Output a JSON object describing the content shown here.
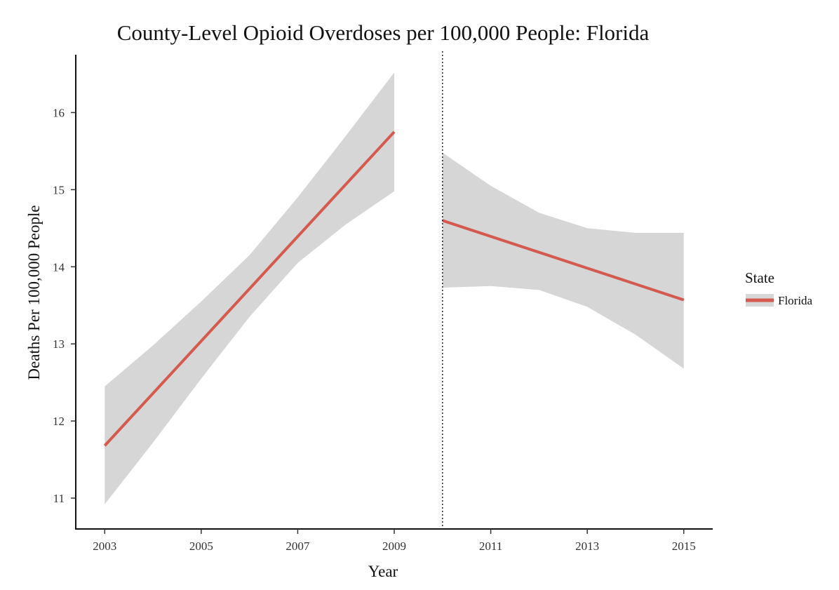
{
  "chart_data": {
    "type": "line",
    "title": "County-Level Opioid Overdoses per 100,000 People: Florida",
    "xlabel": "Year",
    "ylabel": "Deaths Per 100,000 People",
    "xlim": [
      2002.4,
      2015.6
    ],
    "ylim": [
      10.6,
      16.75
    ],
    "x_ticks": [
      2003,
      2005,
      2007,
      2009,
      2011,
      2013,
      2015
    ],
    "y_ticks": [
      11,
      12,
      13,
      14,
      15,
      16
    ],
    "grid": false,
    "legend": {
      "title": "State",
      "placement": "right",
      "entries": [
        "Florida"
      ]
    },
    "reference_line": {
      "x": 2010,
      "style": "dotted"
    },
    "series": [
      {
        "name": "Florida",
        "color": "#d45a50",
        "band_color": "#d6d6d6",
        "segments": [
          {
            "x": [
              2003,
              2009
            ],
            "y": [
              11.68,
              15.75
            ],
            "band": [
              {
                "x": 2003,
                "lower": 10.92,
                "upper": 12.45
              },
              {
                "x": 2004,
                "lower": 11.72,
                "upper": 12.98
              },
              {
                "x": 2005,
                "lower": 12.55,
                "upper": 13.55
              },
              {
                "x": 2006,
                "lower": 13.35,
                "upper": 14.15
              },
              {
                "x": 2007,
                "lower": 14.05,
                "upper": 14.9
              },
              {
                "x": 2008,
                "lower": 14.55,
                "upper": 15.7
              },
              {
                "x": 2009,
                "lower": 14.98,
                "upper": 16.52
              }
            ]
          },
          {
            "x": [
              2010,
              2015
            ],
            "y": [
              14.6,
              13.57
            ],
            "band": [
              {
                "x": 2010,
                "lower": 13.73,
                "upper": 15.48
              },
              {
                "x": 2011,
                "lower": 13.75,
                "upper": 15.05
              },
              {
                "x": 2012,
                "lower": 13.7,
                "upper": 14.7
              },
              {
                "x": 2013,
                "lower": 13.48,
                "upper": 14.5
              },
              {
                "x": 2014,
                "lower": 13.12,
                "upper": 14.44
              },
              {
                "x": 2015,
                "lower": 12.68,
                "upper": 14.44
              }
            ]
          }
        ]
      }
    ]
  }
}
